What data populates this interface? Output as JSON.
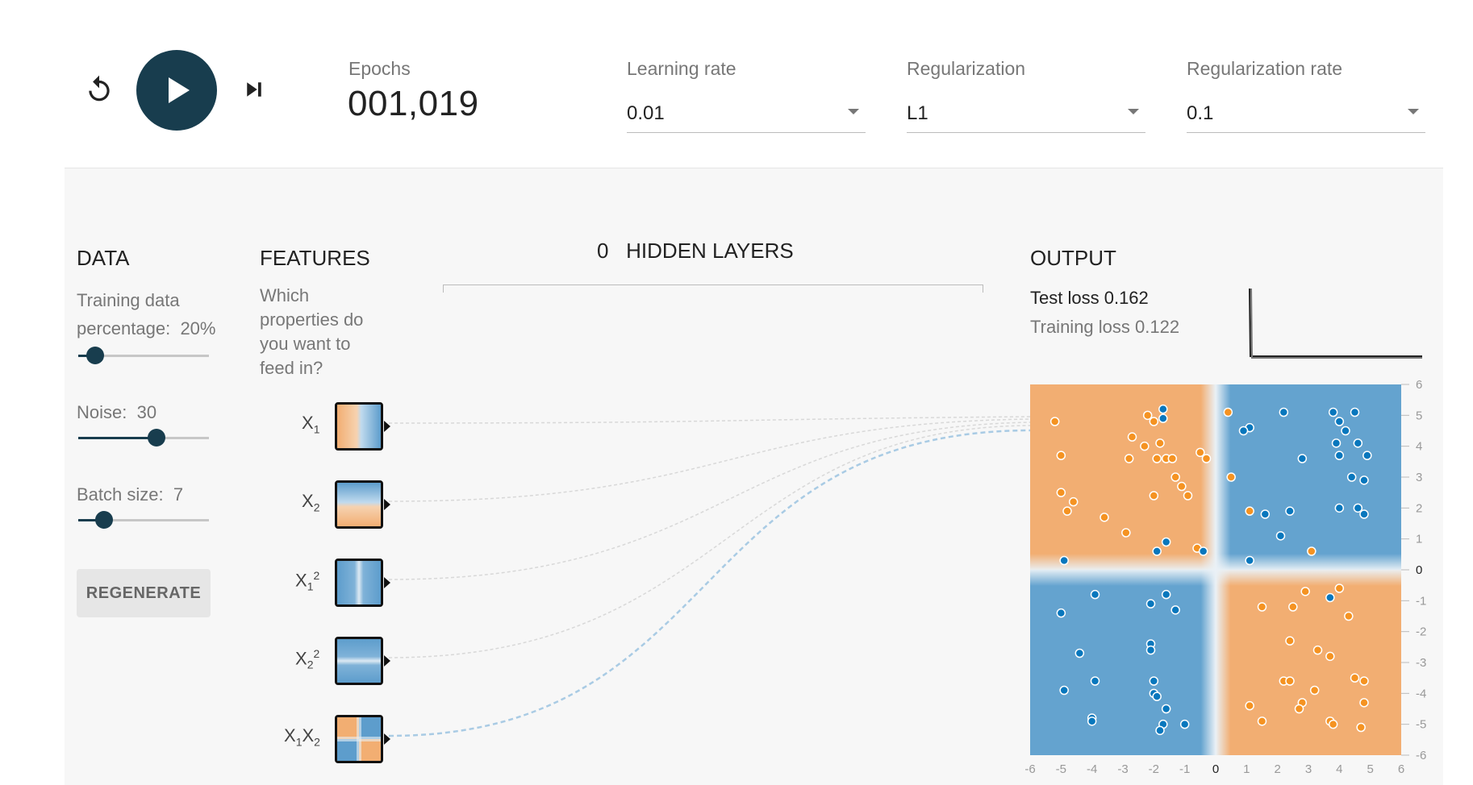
{
  "controls": {
    "reset_icon": "reset-icon",
    "play_icon": "play-icon",
    "step_icon": "step-forward-icon"
  },
  "epochs": {
    "label": "Epochs",
    "value": "001,019"
  },
  "selects": [
    {
      "label": "Learning rate",
      "value": "0.01"
    },
    {
      "label": "Regularization",
      "value": "L1"
    },
    {
      "label": "Regularization rate",
      "value": "0.1"
    }
  ],
  "data_panel": {
    "title": "DATA",
    "training_pct_label_line1": "Training data",
    "training_pct_label_line2": "percentage:",
    "training_pct_value": "20%",
    "training_pct_fraction": 0.13,
    "noise_label": "Noise:",
    "noise_value": "30",
    "noise_fraction": 0.6,
    "batch_label": "Batch size:",
    "batch_value": "7",
    "batch_fraction": 0.2,
    "regenerate_label": "REGENERATE"
  },
  "features_panel": {
    "title": "FEATURES",
    "desc_lines": [
      "Which",
      "properties do",
      "you want to",
      "feed in?"
    ],
    "features": [
      {
        "base": "X",
        "sub": "1",
        "sup": ""
      },
      {
        "base": "X",
        "sub": "2",
        "sup": ""
      },
      {
        "base": "X",
        "sub": "1",
        "sup": "2"
      },
      {
        "base": "X",
        "sub": "2",
        "sup": "2"
      },
      {
        "base": "X",
        "sub": "1",
        "sup": "",
        "base2": "X",
        "sub2": "2"
      }
    ]
  },
  "hidden_layers": {
    "count": "0",
    "label": "HIDDEN LAYERS"
  },
  "output_panel": {
    "title": "OUTPUT",
    "test_loss_label": "Test loss",
    "test_loss_value": "0.162",
    "training_loss_label": "Training loss",
    "training_loss_value": "0.122"
  },
  "chart_data": {
    "type": "scatter",
    "xlim": [
      -6,
      6
    ],
    "ylim": [
      -6,
      6
    ],
    "x_ticks": [
      "-6",
      "-5",
      "-4",
      "-3",
      "-2",
      "-1",
      "0",
      "1",
      "2",
      "3",
      "4",
      "5",
      "6"
    ],
    "y_ticks": [
      "6",
      "5",
      "4",
      "3",
      "2",
      "1",
      "0",
      "-1",
      "-2",
      "-3",
      "-4",
      "-5",
      "-6"
    ],
    "colors": {
      "orange": "#f59322",
      "blue": "#0877bd",
      "bg_orange": "#f2ae72",
      "bg_blue": "#64a3cf"
    },
    "orange_points": [
      [
        -5.2,
        4.8
      ],
      [
        -2.2,
        5
      ],
      [
        -2,
        4.8
      ],
      [
        0.4,
        5.1
      ],
      [
        -5,
        3.7
      ],
      [
        -2.7,
        4.3
      ],
      [
        -2.3,
        4
      ],
      [
        -1.8,
        4.1
      ],
      [
        -2.8,
        3.6
      ],
      [
        -1.9,
        3.6
      ],
      [
        -1.6,
        3.6
      ],
      [
        -1.4,
        3.6
      ],
      [
        -0.5,
        3.8
      ],
      [
        -0.3,
        3.6
      ],
      [
        -1.3,
        3
      ],
      [
        -1.1,
        2.7
      ],
      [
        -0.9,
        2.4
      ],
      [
        -2,
        2.4
      ],
      [
        -5.0,
        2.5
      ],
      [
        -4.6,
        2.2
      ],
      [
        -4.8,
        1.9
      ],
      [
        -3.6,
        1.7
      ],
      [
        -2.9,
        1.2
      ],
      [
        0.5,
        3
      ],
      [
        1.1,
        1.9
      ],
      [
        -0.6,
        0.7
      ],
      [
        3.1,
        0.6
      ],
      [
        2.9,
        -0.7
      ],
      [
        4.0,
        -0.6
      ],
      [
        1.5,
        -1.2
      ],
      [
        2.5,
        -1.2
      ],
      [
        4.3,
        -1.5
      ],
      [
        2.4,
        -2.3
      ],
      [
        3.3,
        -2.6
      ],
      [
        3.7,
        -2.8
      ],
      [
        2.2,
        -3.6
      ],
      [
        2.4,
        -3.6
      ],
      [
        4.5,
        -3.5
      ],
      [
        4.8,
        -3.6
      ],
      [
        3.2,
        -3.9
      ],
      [
        2.8,
        -4.3
      ],
      [
        2.7,
        -4.5
      ],
      [
        1.1,
        -4.4
      ],
      [
        1.5,
        -4.9
      ],
      [
        3.7,
        -4.9
      ],
      [
        3.8,
        -5
      ],
      [
        4.8,
        -4.3
      ],
      [
        4.7,
        -5.1
      ]
    ],
    "blue_points": [
      [
        -1.7,
        5.2
      ],
      [
        -1.7,
        4.9
      ],
      [
        1.1,
        4.6
      ],
      [
        0.9,
        4.5
      ],
      [
        2.2,
        5.1
      ],
      [
        3.8,
        5.1
      ],
      [
        4.5,
        5.1
      ],
      [
        4,
        4.8
      ],
      [
        4.2,
        4.5
      ],
      [
        3.9,
        4.1
      ],
      [
        4.6,
        4.1
      ],
      [
        4.0,
        3.7
      ],
      [
        4.9,
        3.7
      ],
      [
        2.8,
        3.6
      ],
      [
        4.4,
        3
      ],
      [
        4.8,
        2.9
      ],
      [
        4.0,
        2.0
      ],
      [
        4.6,
        2.0
      ],
      [
        4.8,
        1.8
      ],
      [
        1.6,
        1.8
      ],
      [
        2.4,
        1.9
      ],
      [
        2.1,
        1.1
      ],
      [
        -1.6,
        0.9
      ],
      [
        -1.9,
        0.6
      ],
      [
        -0.4,
        0.6
      ],
      [
        1.1,
        0.3
      ],
      [
        -4.9,
        0.3
      ],
      [
        -3.9,
        -0.8
      ],
      [
        -1.6,
        -0.8
      ],
      [
        -2.1,
        -1.1
      ],
      [
        -1.3,
        -1.3
      ],
      [
        -5.0,
        -1.4
      ],
      [
        -2.1,
        -2.4
      ],
      [
        -2.1,
        -2.6
      ],
      [
        -4.4,
        -2.7
      ],
      [
        -3.9,
        -3.6
      ],
      [
        -2,
        -3.6
      ],
      [
        -2,
        -4
      ],
      [
        -1.9,
        -4.1
      ],
      [
        -4.9,
        -3.9
      ],
      [
        -1.6,
        -4.5
      ],
      [
        -4.0,
        -4.8
      ],
      [
        -4.0,
        -4.9
      ],
      [
        -1.7,
        -5
      ],
      [
        -1.0,
        -5.0
      ],
      [
        -1.8,
        -5.2
      ],
      [
        3.7,
        -0.9
      ]
    ]
  }
}
